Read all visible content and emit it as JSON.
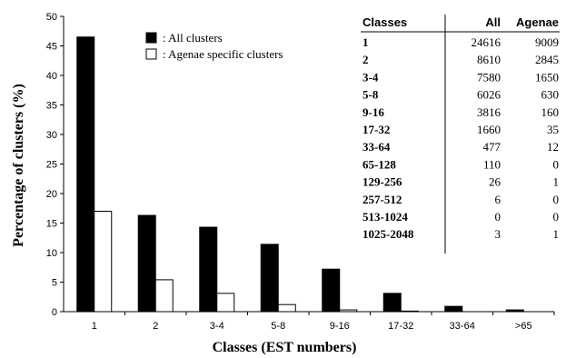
{
  "chart_data": {
    "type": "bar",
    "categories": [
      "1",
      "2",
      "3-4",
      "5-8",
      "9-16",
      "17-32",
      "33-64",
      ">65"
    ],
    "series": [
      {
        "name": ": All clusters",
        "values": [
          46.5,
          16.3,
          14.3,
          11.4,
          7.2,
          3.1,
          0.9,
          0.3
        ],
        "color": "#000000"
      },
      {
        "name": ": Agenae specific clusters",
        "values": [
          17.0,
          5.4,
          3.1,
          1.2,
          0.3,
          0.1,
          0.0,
          0.0
        ],
        "color": "#ffffff"
      }
    ],
    "xlabel": "Classes (EST numbers)",
    "ylabel": "Percentage of clusters (%)",
    "ylim": [
      0,
      50
    ],
    "yticks": [
      0,
      5,
      10,
      15,
      20,
      25,
      30,
      35,
      40,
      45,
      50
    ],
    "grid": false,
    "legend_position": "top-center",
    "table": {
      "headers": [
        "Classes",
        "All",
        "Agenae"
      ],
      "rows": [
        [
          "1",
          "24616",
          "9009"
        ],
        [
          "2",
          "8610",
          "2845"
        ],
        [
          "3-4",
          "7580",
          "1650"
        ],
        [
          "5-8",
          "6026",
          "630"
        ],
        [
          "9-16",
          "3816",
          "160"
        ],
        [
          "17-32",
          "1660",
          "35"
        ],
        [
          "33-64",
          "477",
          "12"
        ],
        [
          "65-128",
          "110",
          "0"
        ],
        [
          "129-256",
          "26",
          "1"
        ],
        [
          "257-512",
          "6",
          "0"
        ],
        [
          "513-1024",
          "0",
          "0"
        ],
        [
          "1025-2048",
          "3",
          "1"
        ]
      ]
    }
  }
}
